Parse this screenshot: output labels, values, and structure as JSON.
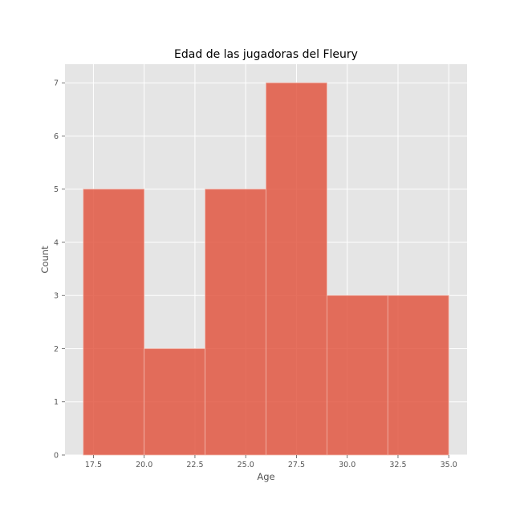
{
  "chart_data": {
    "type": "bar",
    "title": "Edad de las jugadoras del Fleury",
    "xlabel": "Age",
    "ylabel": "Count",
    "bins": [
      {
        "start": 17.0,
        "end": 20.0,
        "value": 5
      },
      {
        "start": 20.0,
        "end": 23.0,
        "value": 2
      },
      {
        "start": 23.0,
        "end": 26.0,
        "value": 5
      },
      {
        "start": 26.0,
        "end": 29.0,
        "value": 7
      },
      {
        "start": 29.0,
        "end": 32.0,
        "value": 3
      },
      {
        "start": 32.0,
        "end": 35.0,
        "value": 3
      }
    ],
    "xlim": [
      16.1,
      35.9
    ],
    "ylim": [
      0,
      7.35
    ],
    "xticks": [
      17.5,
      20.0,
      22.5,
      25.0,
      27.5,
      30.0,
      32.5,
      35.0
    ],
    "xtick_labels": [
      "17.5",
      "20.0",
      "22.5",
      "25.0",
      "27.5",
      "30.0",
      "32.5",
      "35.0"
    ],
    "yticks": [
      0,
      1,
      2,
      3,
      4,
      5,
      6,
      7
    ],
    "ytick_labels": [
      "0",
      "1",
      "2",
      "3",
      "4",
      "5",
      "6",
      "7"
    ],
    "grid": true,
    "colors": {
      "bar": "#e0513a",
      "bar_edge": "#f2b6aa",
      "plot_background": "#e5e5e5",
      "grid": "#ffffff",
      "text": "#555555"
    }
  }
}
